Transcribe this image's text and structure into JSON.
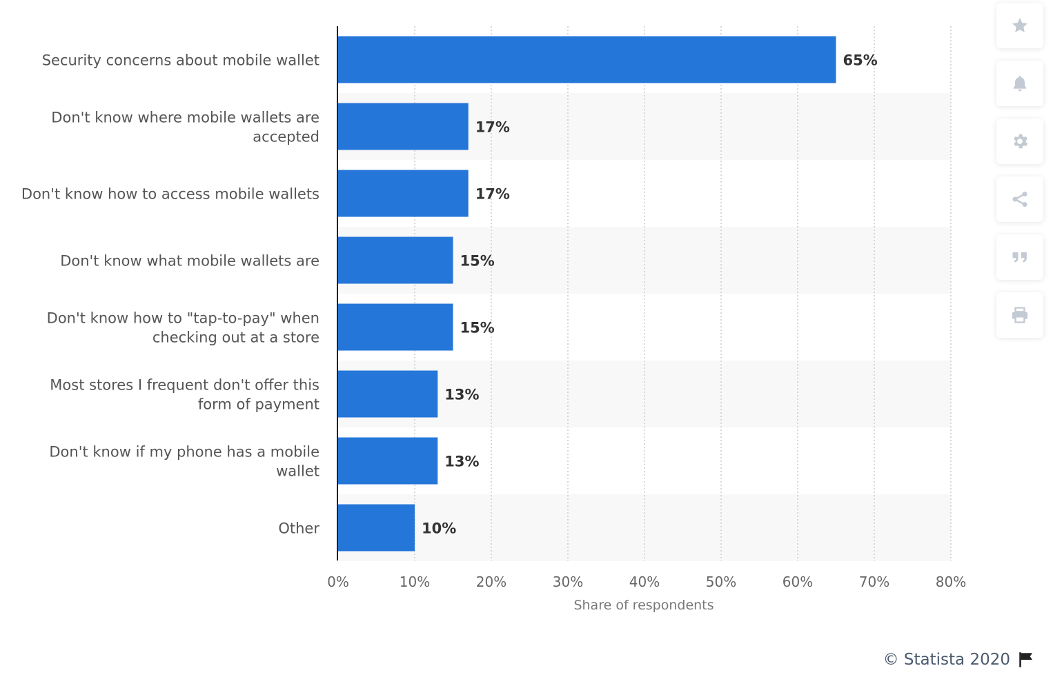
{
  "chart_data": {
    "type": "bar",
    "orientation": "horizontal",
    "categories": [
      [
        "Security concerns about mobile wallet"
      ],
      [
        "Don't know where mobile wallets are",
        "accepted"
      ],
      [
        "Don't know how to access mobile wallets"
      ],
      [
        "Don't know what mobile wallets are"
      ],
      [
        "Don't know how to \"tap-to-pay\" when",
        "checking out at a store"
      ],
      [
        "Most stores I frequent don't offer this",
        "form of payment"
      ],
      [
        "Don't know if my phone has a mobile",
        "wallet"
      ],
      [
        "Other"
      ]
    ],
    "values": [
      65,
      17,
      17,
      15,
      15,
      13,
      13,
      10
    ],
    "value_labels": [
      "65%",
      "17%",
      "17%",
      "15%",
      "15%",
      "13%",
      "13%",
      "10%"
    ],
    "xlim": [
      0,
      80
    ],
    "xticks": [
      0,
      10,
      20,
      30,
      40,
      50,
      60,
      70,
      80
    ],
    "xtick_labels": [
      "0%",
      "10%",
      "20%",
      "30%",
      "40%",
      "50%",
      "60%",
      "70%",
      "80%"
    ],
    "xlabel": "Share of respondents",
    "ylabel": "",
    "grid": true,
    "bar_color": "#2576d9"
  },
  "credit": {
    "text": "© Statista 2020"
  },
  "toolbar": {
    "buttons": [
      "star-icon",
      "bell-icon",
      "gear-icon",
      "share-icon",
      "quote-icon",
      "print-icon"
    ]
  }
}
